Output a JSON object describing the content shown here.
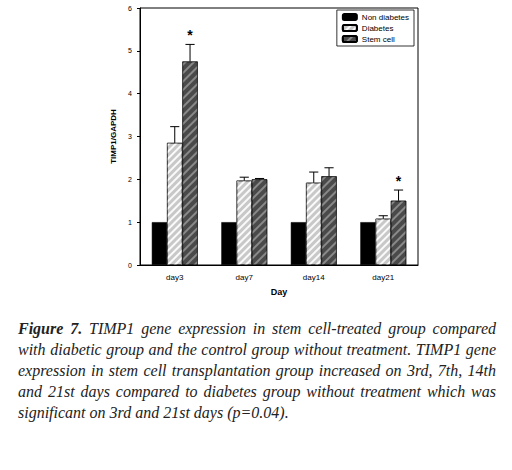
{
  "chart_data": {
    "type": "bar",
    "categories": [
      "day3",
      "day7",
      "day14",
      "day21"
    ],
    "series": [
      {
        "name": "Non diabetes",
        "color": "#000000",
        "values": [
          1,
          1,
          1,
          1
        ]
      },
      {
        "name": "Diabetes",
        "color": "#c8c8c8",
        "values": [
          2.85,
          1.97,
          1.92,
          1.08
        ],
        "errors": [
          0.38,
          0.08,
          0.25,
          0.07
        ]
      },
      {
        "name": "Stem cell",
        "color": "#4a4a4a",
        "values": [
          4.75,
          2.0,
          2.07,
          1.5
        ],
        "errors": [
          0.4,
          0.02,
          0.2,
          0.25
        ]
      }
    ],
    "x_label": "Day",
    "y_label": "TIMP1/GAPDH",
    "ylim": [
      0,
      6
    ],
    "yticks": [
      0,
      1,
      2,
      3,
      4,
      5,
      6
    ],
    "legend": "upper right",
    "annotations": [
      {
        "text": "*",
        "category": "day3",
        "series": "Stem cell"
      },
      {
        "text": "*",
        "category": "day21",
        "series": "Stem cell"
      }
    ],
    "caption_label": "Figure 7.",
    "caption": "TIMP1 gene expression in stem cell-treated group compared with diabetic group and the control group without treatment. TIMP1 gene expression in stem cell transplantation group increased on 3rd, 7th, 14th and 21st days compared to diabetes group without treatment which was significant on 3rd and 21st days (p=0.04)."
  }
}
